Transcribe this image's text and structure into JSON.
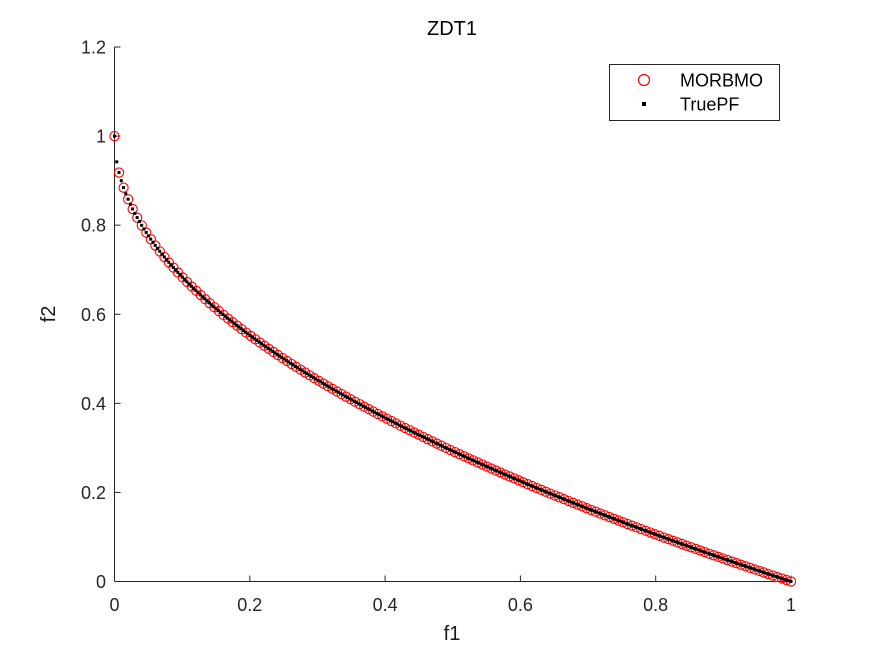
{
  "chart_data": {
    "type": "scatter",
    "title": "ZDT1",
    "xlabel": "f1",
    "ylabel": "f2",
    "xlim": [
      0,
      1
    ],
    "ylim": [
      0,
      1.2
    ],
    "grid": false,
    "box": false,
    "tick_direction": "in",
    "axis_color": "#262626",
    "background": "#ffffff",
    "x_ticks": [
      {
        "value": 0,
        "label": "0"
      },
      {
        "value": 0.2,
        "label": "0.2"
      },
      {
        "value": 0.4,
        "label": "0.4"
      },
      {
        "value": 0.6,
        "label": "0.6"
      },
      {
        "value": 0.8,
        "label": "0.8"
      },
      {
        "value": 1,
        "label": "1"
      }
    ],
    "y_ticks": [
      {
        "value": 0,
        "label": "0"
      },
      {
        "value": 0.2,
        "label": "0.2"
      },
      {
        "value": 0.4,
        "label": "0.4"
      },
      {
        "value": 0.6,
        "label": "0.6"
      },
      {
        "value": 0.8,
        "label": "0.8"
      },
      {
        "value": 1,
        "label": "1"
      },
      {
        "value": 1.2,
        "label": "1.2"
      }
    ],
    "legend": {
      "position": "northeast",
      "entries": [
        {
          "label": "MORBMO",
          "marker": "open-circle",
          "color": "#ff0000"
        },
        {
          "label": "TruePF",
          "marker": "point",
          "color": "#000000"
        }
      ]
    },
    "series": [
      {
        "name": "MORBMO",
        "marker": "open-circle",
        "marker_size": 9.2,
        "stroke_width": 1.1,
        "color": "#ff0000",
        "n_points": 150,
        "x_min": 0,
        "x_max": 1,
        "x_sampling": "uniform",
        "curve": "f2 = 1 - sqrt(f1)",
        "endpoints": {
          "first": [
            0,
            1
          ],
          "last": [
            1,
            0
          ]
        }
      },
      {
        "name": "TruePF",
        "marker": "point",
        "marker_size": 3,
        "stroke_width": 0,
        "color": "#000000",
        "n_points": 300,
        "x_min": 0,
        "x_max": 1,
        "x_sampling": "uniform",
        "curve": "f2 = 1 - sqrt(f1)",
        "endpoints": {
          "first": [
            0,
            1
          ],
          "last": [
            1,
            0
          ]
        }
      }
    ],
    "description": "Pareto front of the ZDT1 benchmark problem: f2 = 1 - sqrt(f1) for 0 <= f1 <= 1; MORBMO approximation (red open circles) overlaid on the true Pareto front (black dots)."
  }
}
